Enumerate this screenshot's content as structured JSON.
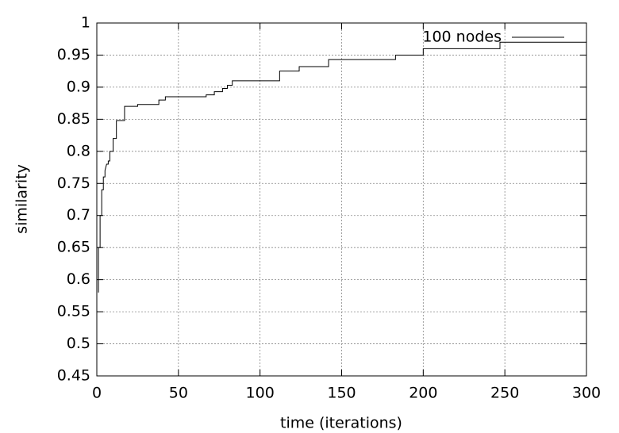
{
  "chart_data": {
    "type": "line",
    "xlabel": "time (iterations)",
    "ylabel": "similarity",
    "xlim": [
      0,
      300
    ],
    "ylim": [
      0.45,
      1
    ],
    "xticks": [
      0,
      50,
      100,
      150,
      200,
      250,
      300
    ],
    "yticks": [
      0.45,
      0.5,
      0.55,
      0.6,
      0.65,
      0.7,
      0.75,
      0.8,
      0.85,
      0.9,
      0.95,
      1
    ],
    "grid": true,
    "legend": "upper right",
    "series": [
      {
        "name": "100 nodes",
        "color": "#000000",
        "x": [
          1,
          1,
          2,
          2,
          3,
          3,
          4,
          4,
          5,
          5,
          6,
          7,
          7,
          8,
          8,
          10,
          10,
          12,
          12,
          17,
          17,
          25,
          25,
          38,
          38,
          42,
          42,
          67,
          67,
          72,
          72,
          77,
          77,
          80,
          80,
          83,
          83,
          112,
          112,
          124,
          124,
          142,
          142,
          183,
          183,
          200,
          200,
          247,
          247,
          300
        ],
        "values": [
          0.58,
          0.65,
          0.65,
          0.7,
          0.7,
          0.74,
          0.74,
          0.76,
          0.76,
          0.77,
          0.78,
          0.78,
          0.785,
          0.785,
          0.8,
          0.8,
          0.82,
          0.82,
          0.848,
          0.848,
          0.87,
          0.87,
          0.873,
          0.873,
          0.88,
          0.88,
          0.885,
          0.885,
          0.888,
          0.888,
          0.893,
          0.893,
          0.898,
          0.898,
          0.903,
          0.903,
          0.91,
          0.91,
          0.925,
          0.925,
          0.932,
          0.932,
          0.943,
          0.943,
          0.95,
          0.95,
          0.96,
          0.96,
          0.97,
          0.97
        ]
      }
    ]
  }
}
